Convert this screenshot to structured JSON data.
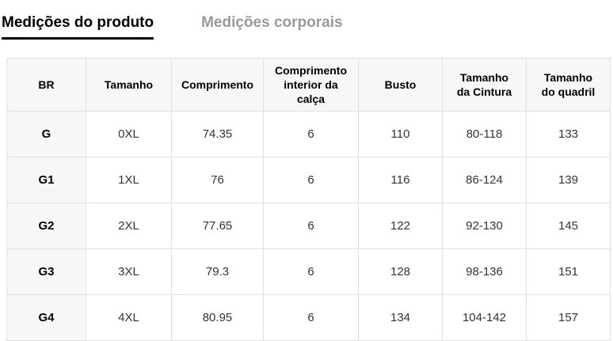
{
  "tabs": [
    {
      "id": "product-measurements",
      "label": "Medições do produto",
      "active": true
    },
    {
      "id": "body-measurements",
      "label": "Medições corporais",
      "active": false
    }
  ],
  "table": {
    "columns": [
      "BR",
      "Tamanho",
      "Comprimento",
      "Comprimento interior da calça",
      "Busto",
      "Tamanho da Cintura",
      "Tamanho do quadril"
    ],
    "rows": [
      [
        "G",
        "0XL",
        "74.35",
        "6",
        "110",
        "80-118",
        "133"
      ],
      [
        "G1",
        "1XL",
        "76",
        "6",
        "116",
        "86-124",
        "139"
      ],
      [
        "G2",
        "2XL",
        "77.65",
        "6",
        "122",
        "92-130",
        "145"
      ],
      [
        "G3",
        "3XL",
        "79.3",
        "6",
        "128",
        "98-136",
        "151"
      ],
      [
        "G4",
        "4XL",
        "80.95",
        "6",
        "134",
        "104-142",
        "157"
      ]
    ]
  },
  "colors": {
    "active_tab_text": "#000000",
    "inactive_tab_text": "#999999",
    "tab_underline": "#000000",
    "header_bg": "#f7f7f7",
    "row_head_bg": "#f7f7f7",
    "border": "#e0e0e0",
    "body_text": "#333333"
  }
}
